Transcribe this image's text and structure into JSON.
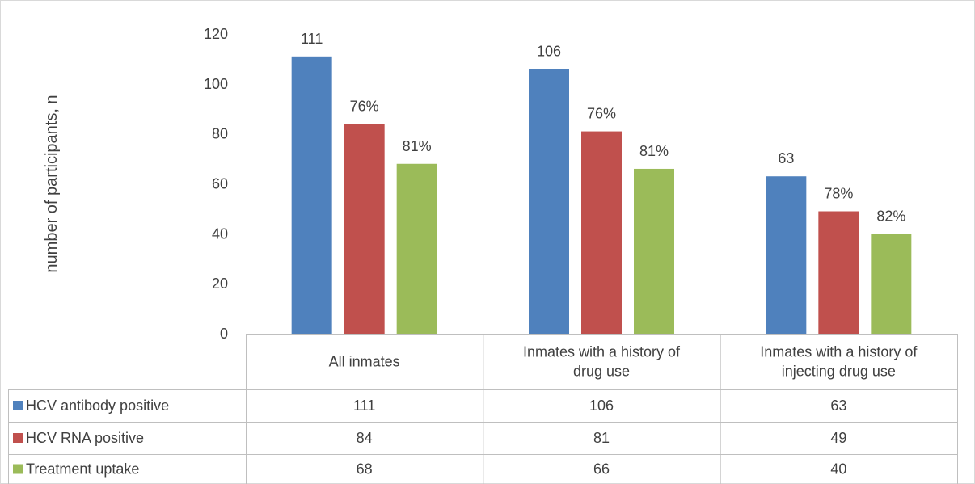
{
  "chart_data": {
    "type": "bar",
    "title": "",
    "xlabel": "",
    "ylabel": "number of participants, n",
    "ylim": [
      0,
      120
    ],
    "yticks": [
      0,
      20,
      40,
      60,
      80,
      100,
      120
    ],
    "grid": false,
    "legend": "data-table-left",
    "categories": [
      [
        "All inmates"
      ],
      [
        "Inmates with a history of",
        "drug use"
      ],
      [
        "Inmates with a history of",
        "injecting drug use"
      ]
    ],
    "series": [
      {
        "name": "HCV antibody positive",
        "color": "#4f81bd",
        "values": [
          111,
          106,
          63
        ],
        "data_labels": [
          "111",
          "106",
          "63"
        ],
        "table_values": [
          "111",
          "106",
          "63"
        ]
      },
      {
        "name": "HCV RNA positive",
        "color": "#c0504d",
        "values": [
          84,
          81,
          49
        ],
        "data_labels": [
          "76%",
          "76%",
          "78%"
        ],
        "table_values": [
          "84",
          "81",
          "49"
        ]
      },
      {
        "name": "Treatment uptake",
        "color": "#9bbb59",
        "values": [
          68,
          66,
          40
        ],
        "data_labels": [
          "81%",
          "81%",
          "82%"
        ],
        "table_values": [
          "68",
          "66",
          "40"
        ]
      }
    ]
  }
}
